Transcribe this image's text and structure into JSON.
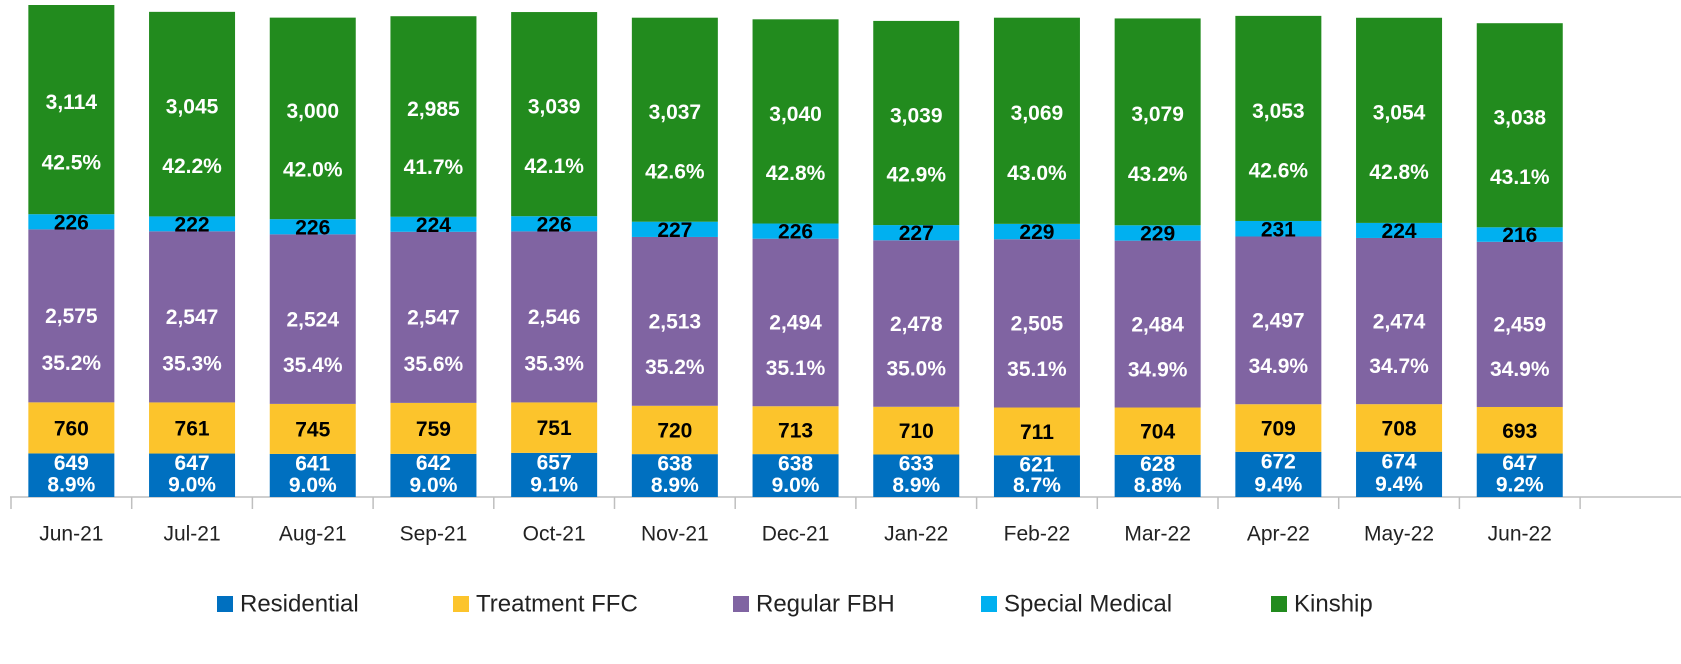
{
  "chart_data": {
    "type": "stacked_bar",
    "categories": [
      "Jun-21",
      "Jul-21",
      "Aug-21",
      "Sep-21",
      "Oct-21",
      "Nov-21",
      "Dec-21",
      "Jan-22",
      "Feb-22",
      "Mar-22",
      "Apr-22",
      "May-22",
      "Jun-22"
    ],
    "series": [
      {
        "name": "Residential",
        "color": "#0070c0",
        "label_color": "#ffffff",
        "values": [
          649,
          647,
          641,
          642,
          657,
          638,
          638,
          633,
          621,
          628,
          672,
          674,
          647
        ],
        "percent_labels": [
          "8.9%",
          "9.0%",
          "9.0%",
          "9.0%",
          "9.1%",
          "8.9%",
          "9.0%",
          "8.9%",
          "8.7%",
          "8.8%",
          "9.4%",
          "9.4%",
          "9.2%"
        ]
      },
      {
        "name": "Treatment FFC",
        "color": "#fcc42c",
        "label_color": "#000000",
        "values": [
          760,
          761,
          745,
          759,
          751,
          720,
          713,
          710,
          711,
          704,
          709,
          708,
          693
        ]
      },
      {
        "name": "Regular FBH",
        "color": "#8064a2",
        "label_color": "#ffffff",
        "values": [
          2575,
          2547,
          2524,
          2547,
          2546,
          2513,
          2494,
          2478,
          2505,
          2484,
          2497,
          2474,
          2459
        ],
        "value_labels": [
          "2,575",
          "2,547",
          "2,524",
          "2,547",
          "2,546",
          "2,513",
          "2,494",
          "2,478",
          "2,505",
          "2,484",
          "2,497",
          "2,474",
          "2,459"
        ],
        "percent_labels": [
          "35.2%",
          "35.3%",
          "35.4%",
          "35.6%",
          "35.3%",
          "35.2%",
          "35.1%",
          "35.0%",
          "35.1%",
          "34.9%",
          "34.9%",
          "34.7%",
          "34.9%"
        ]
      },
      {
        "name": "Special Medical",
        "color": "#00b0f0",
        "label_color": "#000000",
        "values": [
          226,
          222,
          226,
          224,
          226,
          227,
          226,
          227,
          229,
          229,
          231,
          224,
          216
        ]
      },
      {
        "name": "Kinship",
        "color": "#228b1e",
        "label_color": "#ffffff",
        "values": [
          3114,
          3045,
          3000,
          2985,
          3039,
          3037,
          3040,
          3039,
          3069,
          3079,
          3053,
          3054,
          3038
        ],
        "value_labels": [
          "3,114",
          "3,045",
          "3,000",
          "2,985",
          "3,039",
          "3,037",
          "3,040",
          "3,039",
          "3,069",
          "3,079",
          "3,053",
          "3,054",
          "3,038"
        ],
        "percent_labels": [
          "42.5%",
          "42.2%",
          "42.0%",
          "41.7%",
          "42.1%",
          "42.6%",
          "42.8%",
          "42.9%",
          "43.0%",
          "43.2%",
          "42.6%",
          "42.8%",
          "43.1%"
        ]
      }
    ],
    "legend": "bottom"
  }
}
